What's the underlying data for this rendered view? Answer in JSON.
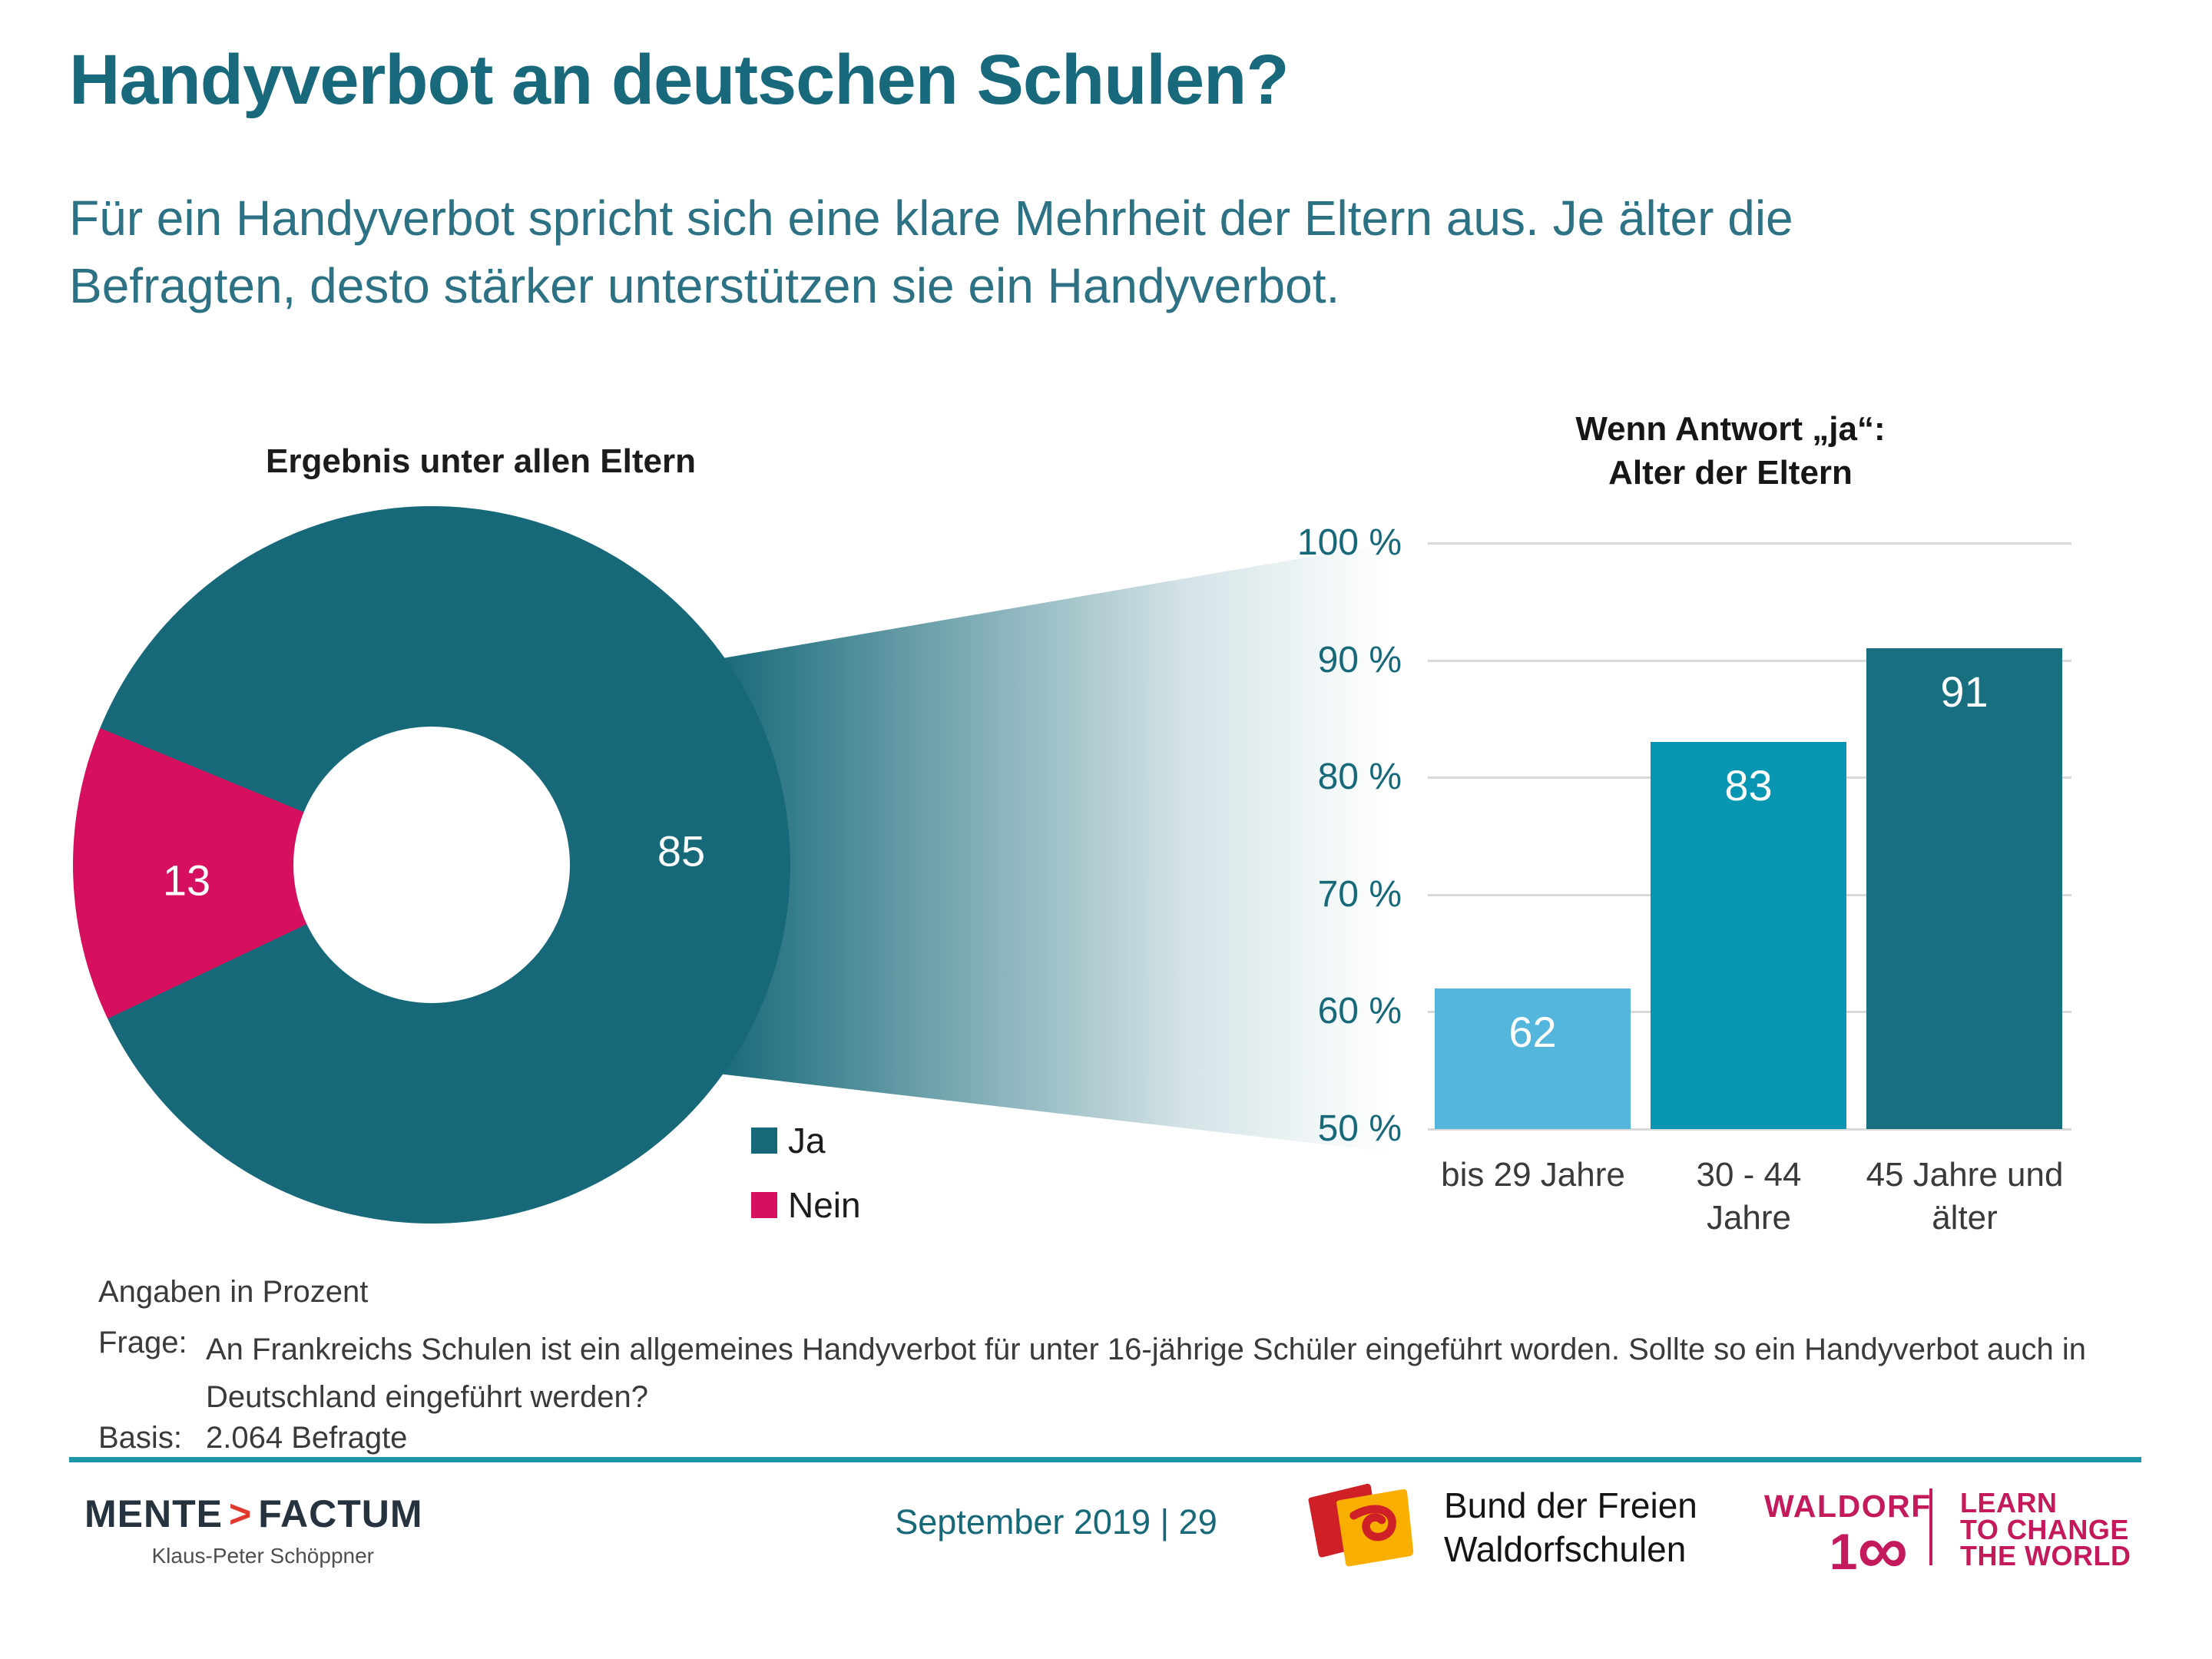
{
  "header": {
    "title": "Handyverbot an deutschen Schulen?",
    "subtitle_line1": "Für ein Handyverbot spricht sich eine klare Mehrheit der Eltern aus. Je älter die",
    "subtitle_line2": "Befragten, desto stärker unterstützen sie ein Handyverbot."
  },
  "donut_chart": {
    "title": "Ergebnis unter allen Eltern",
    "ja_value": "85",
    "nein_value": "13",
    "legend_ja": "Ja",
    "legend_nein": "Nein"
  },
  "bar_chart": {
    "title_line1": "Wenn Antwort „ja“:",
    "title_line2": "Alter der Eltern",
    "yticks": [
      "100 %",
      "90 %",
      "80 %",
      "70 %",
      "60 %",
      "50 %"
    ],
    "bars": [
      {
        "value": "62",
        "label_lines": [
          "bis 29 Jahre"
        ]
      },
      {
        "value": "83",
        "label_lines": [
          "30 - 44",
          "Jahre"
        ]
      },
      {
        "value": "91",
        "label_lines": [
          "45 Jahre und",
          "älter"
        ]
      }
    ]
  },
  "notes": {
    "unit_note": "Angaben in Prozent",
    "frage_label": "Frage:",
    "frage_line1": "An Frankreichs Schulen ist ein allgemeines Handyverbot für unter 16-jährige Schüler eingeführt worden. Sollte so ein Handyverbot auch in",
    "frage_line2": "Deutschland eingeführt werden?",
    "basis_label": "Basis:",
    "basis_value": "2.064 Befragte"
  },
  "footer": {
    "mf_part1": "MENTE",
    "mf_chevron": ">",
    "mf_part2": "FACTUM",
    "mf_caption": "Klaus-Peter Schöppner",
    "date_page": "September 2019 | 29",
    "bund_line1": "Bund der Freien",
    "bund_line2": "Waldorfschulen",
    "waldorf_word": "WALDORF",
    "waldorf_one": "1",
    "waldorf_infinity": "∞",
    "learn_line1": "LEARN",
    "learn_line2": "TO CHANGE",
    "learn_line3": "THE WORLD"
  },
  "colors": {
    "teal_dark": "#17697A",
    "pink": "#D60F5F",
    "bar_light_blue": "#55B6DD",
    "bar_teal": "#0996B3",
    "bar_dark_teal": "#186F80",
    "rule_teal": "#1E96AA",
    "waldorf_pink": "#C41A5C",
    "mf_navy": "#26323E",
    "mf_red": "#E0392D",
    "bund_red": "#CF2027",
    "bund_yellow": "#F8AF00"
  },
  "chart_data": [
    {
      "type": "pie",
      "variant": "donut",
      "title": "Ergebnis unter allen Eltern",
      "labels": [
        "Ja",
        "Nein"
      ],
      "values": [
        85,
        13
      ],
      "unit": "%",
      "colors": [
        "#17697A",
        "#D60F5F"
      ],
      "legend_position": "bottom-right",
      "note": "Angaben in Prozent"
    },
    {
      "type": "bar",
      "title": "Wenn Antwort „ja“: Alter der Eltern",
      "categories": [
        "bis 29 Jahre",
        "30 - 44 Jahre",
        "45 Jahre und älter"
      ],
      "values": [
        62,
        83,
        91
      ],
      "unit": "%",
      "ylim": [
        50,
        100
      ],
      "ytick_step": 10,
      "grid": true,
      "colors": [
        "#55B6DD",
        "#0996B3",
        "#186F80"
      ]
    }
  ]
}
